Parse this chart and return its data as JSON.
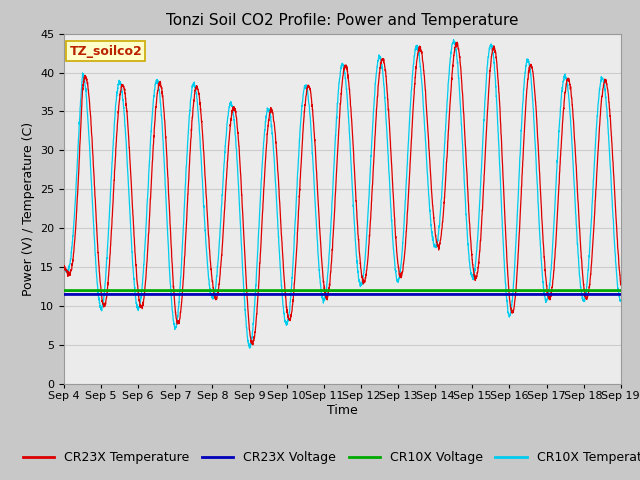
{
  "title": "Tonzi Soil CO2 Profile: Power and Temperature",
  "xlabel": "Time",
  "ylabel": "Power (V) / Temperature (C)",
  "ylim": [
    0,
    45
  ],
  "xlim": [
    0,
    15
  ],
  "x_tick_labels": [
    "Sep 4",
    "Sep 5",
    "Sep 6",
    "Sep 7",
    "Sep 8",
    "Sep 9",
    "Sep 10",
    "Sep 11",
    "Sep 12",
    "Sep 13",
    "Sep 14",
    "Sep 15",
    "Sep 16",
    "Sep 17",
    "Sep 18",
    "Sep 19"
  ],
  "annotation_label": "TZ_soilco2",
  "annotation_box_color": "#ffffcc",
  "annotation_border_color": "#ccaa00",
  "cr23x_temp_color": "#dd0000",
  "cr23x_volt_color": "#0000bb",
  "cr10x_volt_color": "#00aa00",
  "cr10x_temp_color": "#00ccee",
  "grid_color": "#cccccc",
  "fig_bg_color": "#c8c8c8",
  "plot_bg_color": "#ebebeb",
  "title_fontsize": 11,
  "label_fontsize": 9,
  "tick_fontsize": 8,
  "legend_fontsize": 9
}
